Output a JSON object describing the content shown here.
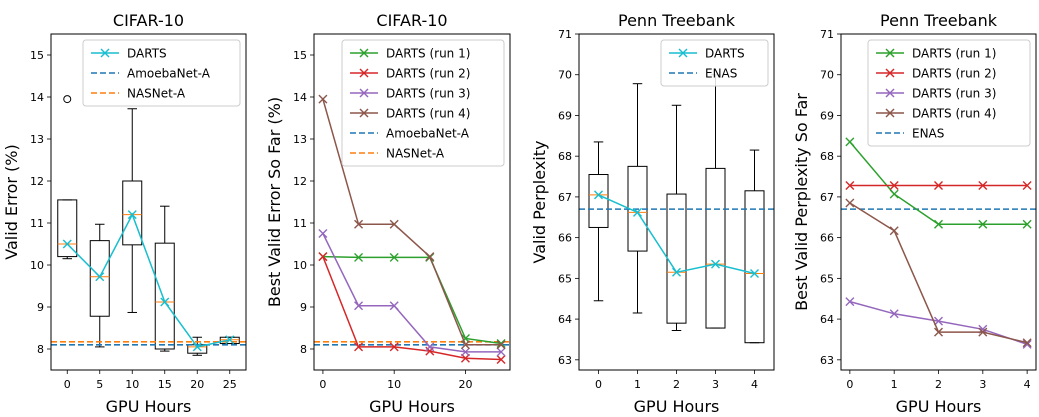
{
  "chart_data": [
    {
      "type": "box+line",
      "title": "CIFAR-10",
      "xlabel": "GPU Hours",
      "ylabel": "Valid Error (%)",
      "xlim": [
        -2.5,
        27.5
      ],
      "ylim": [
        7.5,
        15.5
      ],
      "xticks": [
        0,
        5,
        10,
        15,
        20,
        25
      ],
      "yticks": [
        8,
        9,
        10,
        11,
        12,
        13,
        14,
        15
      ],
      "legend_loc": "upper-right",
      "boxes": [
        {
          "x": 0,
          "q1": 10.2,
          "median": 10.5,
          "q3": 11.55,
          "whisker_low": 10.15,
          "whisker_high": 11.55,
          "outliers": [
            13.95
          ]
        },
        {
          "x": 5,
          "q1": 8.78,
          "median": 9.72,
          "q3": 10.58,
          "whisker_low": 8.05,
          "whisker_high": 10.97,
          "outliers": []
        },
        {
          "x": 10,
          "q1": 10.48,
          "median": 11.2,
          "q3": 12.0,
          "whisker_low": 8.87,
          "whisker_high": 13.72,
          "outliers": []
        },
        {
          "x": 15,
          "q1": 8.0,
          "median": 9.12,
          "q3": 10.52,
          "whisker_low": 7.95,
          "whisker_high": 11.4,
          "outliers": []
        },
        {
          "x": 20,
          "q1": 7.9,
          "median": 8.05,
          "q3": 8.1,
          "whisker_low": 7.85,
          "whisker_high": 8.28,
          "outliers": []
        },
        {
          "x": 25,
          "q1": 8.13,
          "median": 8.22,
          "q3": 8.28,
          "whisker_low": 8.13,
          "whisker_high": 8.28,
          "outliers": []
        }
      ],
      "series": [
        {
          "name": "DARTS",
          "color": "#17becf",
          "marker": "x",
          "x": [
            0,
            5,
            10,
            15,
            20,
            25
          ],
          "y": [
            10.5,
            9.72,
            11.2,
            9.12,
            8.05,
            8.22
          ]
        }
      ],
      "hlines": [
        {
          "name": "AmoebaNet-A",
          "color": "#1f77b4",
          "y": 8.1
        },
        {
          "name": "NASNet-A",
          "color": "#ff7f0e",
          "y": 8.17
        }
      ],
      "legend": [
        "DARTS",
        "AmoebaNet-A",
        "NASNet-A"
      ]
    },
    {
      "type": "line",
      "title": "CIFAR-10",
      "xlabel": "GPU Hours",
      "ylabel": "Best Valid Error So Far (%)",
      "xlim": [
        -1.25,
        26.25
      ],
      "ylim": [
        7.5,
        15.5
      ],
      "xticks": [
        0,
        10,
        20
      ],
      "yticks": [
        8,
        9,
        10,
        11,
        12,
        13,
        14,
        15
      ],
      "legend_loc": "upper-right",
      "boxes": [],
      "series": [
        {
          "name": "DARTS (run 1)",
          "color": "#2ca02c",
          "marker": "x",
          "x": [
            0,
            5,
            10,
            15,
            20,
            25
          ],
          "y": [
            10.2,
            10.18,
            10.18,
            10.18,
            8.25,
            8.13
          ]
        },
        {
          "name": "DARTS (run 2)",
          "color": "#d62728",
          "marker": "x",
          "x": [
            0,
            5,
            10,
            15,
            20,
            25
          ],
          "y": [
            10.2,
            8.05,
            8.05,
            7.95,
            7.78,
            7.75
          ]
        },
        {
          "name": "DARTS (run 3)",
          "color": "#9467bd",
          "marker": "x",
          "x": [
            0,
            5,
            10,
            15,
            20,
            25
          ],
          "y": [
            10.75,
            9.03,
            9.03,
            8.05,
            7.93,
            7.93
          ]
        },
        {
          "name": "DARTS (run 4)",
          "color": "#8c564b",
          "marker": "x",
          "x": [
            0,
            5,
            10,
            15,
            20,
            25
          ],
          "y": [
            13.95,
            10.97,
            10.97,
            10.2,
            8.1,
            8.1
          ]
        }
      ],
      "hlines": [
        {
          "name": "AmoebaNet-A",
          "color": "#1f77b4",
          "y": 8.1
        },
        {
          "name": "NASNet-A",
          "color": "#ff7f0e",
          "y": 8.17
        }
      ],
      "legend": [
        "DARTS (run 1)",
        "DARTS (run 2)",
        "DARTS (run 3)",
        "DARTS (run 4)",
        "AmoebaNet-A",
        "NASNet-A"
      ]
    },
    {
      "type": "box+line",
      "title": "Penn Treebank",
      "xlabel": "GPU Hours",
      "ylabel": "Valid Perplexity",
      "xlim": [
        -0.5,
        4.5
      ],
      "ylim": [
        62.75,
        71.0
      ],
      "xticks": [
        0,
        1,
        2,
        3,
        4
      ],
      "yticks": [
        63,
        64,
        65,
        66,
        67,
        68,
        69,
        70,
        71
      ],
      "legend_loc": "upper-right",
      "boxes": [
        {
          "x": 0,
          "q1": 66.25,
          "median": 67.05,
          "q3": 67.55,
          "whisker_low": 64.45,
          "whisker_high": 68.35,
          "outliers": []
        },
        {
          "x": 1,
          "q1": 65.67,
          "median": 66.62,
          "q3": 67.75,
          "whisker_low": 64.15,
          "whisker_high": 69.78,
          "outliers": []
        },
        {
          "x": 2,
          "q1": 63.9,
          "median": 65.15,
          "q3": 67.07,
          "whisker_low": 63.72,
          "whisker_high": 69.25,
          "outliers": []
        },
        {
          "x": 3,
          "q1": 63.78,
          "median": 65.35,
          "q3": 67.7,
          "whisker_low": 63.78,
          "whisker_high": 70.0,
          "outliers": []
        },
        {
          "x": 4,
          "q1": 63.42,
          "median": 65.12,
          "q3": 67.15,
          "whisker_low": 63.42,
          "whisker_high": 68.15,
          "outliers": []
        }
      ],
      "series": [
        {
          "name": "DARTS",
          "color": "#17becf",
          "marker": "x",
          "x": [
            0,
            1,
            2,
            3,
            4
          ],
          "y": [
            67.05,
            66.62,
            65.15,
            65.35,
            65.12
          ]
        }
      ],
      "hlines": [
        {
          "name": "ENAS",
          "color": "#1f77b4",
          "y": 66.7
        }
      ],
      "legend": [
        "DARTS",
        "ENAS"
      ]
    },
    {
      "type": "line",
      "title": "Penn Treebank",
      "xlabel": "GPU Hours",
      "ylabel": "Best Valid Perplexity So Far",
      "xlim": [
        -0.2,
        4.2
      ],
      "ylim": [
        62.75,
        71.0
      ],
      "xticks": [
        0,
        1,
        2,
        3,
        4
      ],
      "yticks": [
        63,
        64,
        65,
        66,
        67,
        68,
        69,
        70,
        71
      ],
      "legend_loc": "upper-right",
      "boxes": [],
      "series": [
        {
          "name": "DARTS (run 1)",
          "color": "#2ca02c",
          "marker": "x",
          "x": [
            0,
            1,
            2,
            3,
            4
          ],
          "y": [
            68.35,
            67.07,
            66.33,
            66.33,
            66.33
          ]
        },
        {
          "name": "DARTS (run 2)",
          "color": "#d62728",
          "marker": "x",
          "x": [
            0,
            1,
            2,
            3,
            4
          ],
          "y": [
            67.28,
            67.28,
            67.28,
            67.28,
            67.28
          ]
        },
        {
          "name": "DARTS (run 3)",
          "color": "#9467bd",
          "marker": "x",
          "x": [
            0,
            1,
            2,
            3,
            4
          ],
          "y": [
            64.43,
            64.13,
            63.95,
            63.75,
            63.38
          ]
        },
        {
          "name": "DARTS (run 4)",
          "color": "#8c564b",
          "marker": "x",
          "x": [
            0,
            1,
            2,
            3,
            4
          ],
          "y": [
            66.85,
            66.17,
            63.68,
            63.68,
            63.42
          ]
        }
      ],
      "hlines": [
        {
          "name": "ENAS",
          "color": "#1f77b4",
          "y": 66.7
        }
      ],
      "legend": [
        "DARTS (run 1)",
        "DARTS (run 2)",
        "DARTS (run 3)",
        "DARTS (run 4)",
        "ENAS"
      ]
    }
  ]
}
